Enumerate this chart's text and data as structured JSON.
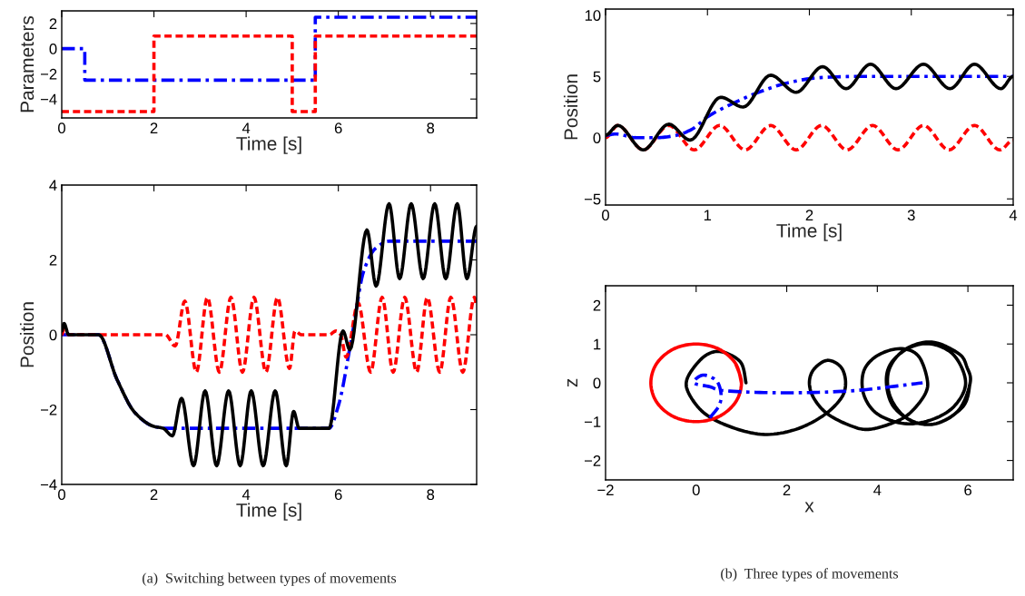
{
  "chart_data": [
    {
      "type": "step",
      "xlabel": "Time [s]",
      "ylabel": "Parameters",
      "xlim": [
        0,
        9
      ],
      "xticks": [
        0,
        2,
        4,
        6,
        8
      ],
      "ylim": [
        -5.5,
        3
      ],
      "yticks": [
        -4,
        -2,
        0,
        2
      ],
      "grid": false,
      "series": [
        {
          "color": "#0000ff",
          "line_style": "dashdot",
          "x": [
            0,
            0.5,
            5.5,
            9
          ],
          "values": [
            0,
            -2.5,
            2.5,
            2.5
          ]
        },
        {
          "color": "#ff0000",
          "line_style": "dashed",
          "x": [
            0,
            2,
            5,
            5.5,
            9
          ],
          "values": [
            -5,
            1,
            -5,
            1,
            1
          ]
        }
      ]
    },
    {
      "type": "line",
      "xlabel": "Time [s]",
      "ylabel": "Position",
      "xlim": [
        0,
        9
      ],
      "xticks": [
        0,
        2,
        4,
        6,
        8
      ],
      "ylim": [
        -4,
        4
      ],
      "yticks": [
        -4,
        -2,
        0,
        2,
        4
      ],
      "grid": false,
      "annotations": [
        "(a)  Switching between types of movements"
      ],
      "series": [
        {
          "color": "#0000ff",
          "line_style": "dashdot",
          "x": [
            0,
            0.8,
            1.2,
            1.6,
            2.0,
            2.3,
            5.8,
            6.0,
            6.3,
            6.55,
            6.8,
            7.1,
            9
          ],
          "values": [
            0,
            0,
            -1.2,
            -2.1,
            -2.45,
            -2.5,
            -2.5,
            -1.9,
            0,
            1.7,
            2.3,
            2.5,
            2.5
          ]
        },
        {
          "color": "#ff0000",
          "line_style": "dashed",
          "x": [
            0,
            0.05,
            0.15,
            2.25,
            2.46,
            2.67,
            2.92,
            3.16,
            3.42,
            3.67,
            3.92,
            4.17,
            4.43,
            4.68,
            4.94,
            5.06,
            5.2,
            5.8,
            5.95,
            6.05,
            6.17,
            6.43,
            6.7,
            6.95,
            7.19,
            7.44,
            7.7,
            7.93,
            8.2,
            8.44,
            8.7,
            8.95,
            9
          ],
          "values": [
            0,
            0.15,
            0,
            0,
            -0.3,
            0.9,
            -1,
            1,
            -1,
            1,
            -1,
            1,
            -1,
            1,
            -0.9,
            0.1,
            0,
            0,
            0.1,
            0,
            -0.6,
            0.85,
            -1,
            1,
            -1,
            1,
            -1,
            1,
            -1,
            1,
            -1,
            1,
            0.8
          ]
        },
        {
          "color": "#000000",
          "line_style": "solid",
          "x": [
            0,
            0.05,
            0.15,
            0.8,
            1.2,
            1.6,
            2.0,
            2.2,
            2.4,
            2.6,
            2.86,
            3.11,
            3.36,
            3.62,
            3.87,
            4.11,
            4.37,
            4.63,
            4.87,
            5.03,
            5.15,
            5.8,
            6.1,
            6.25,
            6.62,
            6.82,
            7.1,
            7.33,
            7.58,
            7.84,
            8.09,
            8.33,
            8.58,
            8.79,
            9
          ],
          "values": [
            0.1,
            0.3,
            0,
            0,
            -1.2,
            -2.1,
            -2.45,
            -2.5,
            -2.7,
            -1.7,
            -3.5,
            -1.5,
            -3.5,
            -1.5,
            -3.5,
            -1.5,
            -3.5,
            -1.5,
            -3.5,
            -2.05,
            -2.5,
            -2.5,
            0.1,
            -0.4,
            2.8,
            1.3,
            3.5,
            1.5,
            3.5,
            1.5,
            3.5,
            1.5,
            3.5,
            1.5,
            2.9
          ]
        }
      ]
    },
    {
      "type": "line",
      "xlabel": "Time [s]",
      "ylabel": "Position",
      "xlim": [
        0,
        4
      ],
      "xticks": [
        0,
        1,
        2,
        3,
        4
      ],
      "ylim": [
        -5.5,
        10.5
      ],
      "yticks": [
        -5,
        0,
        5,
        10
      ],
      "grid": false,
      "series": [
        {
          "color": "#ff0000",
          "line_style": "dashed",
          "x": [
            0,
            0.12,
            0.37,
            0.62,
            0.87,
            1.12,
            1.37,
            1.62,
            1.87,
            2.12,
            2.37,
            2.62,
            2.87,
            3.12,
            3.37,
            3.62,
            3.87,
            4.0
          ],
          "values": [
            0,
            1,
            -1,
            1,
            -1,
            1,
            -1,
            1,
            -1,
            1,
            -1,
            1,
            -1,
            1,
            -1,
            1,
            -1,
            -0.2
          ]
        },
        {
          "color": "#0000ff",
          "line_style": "dashdot",
          "x": [
            0,
            0.1,
            0.3,
            0.5,
            0.7,
            0.85,
            1.0,
            1.2,
            1.5,
            1.8,
            2.1,
            2.5,
            4.0
          ],
          "values": [
            0.2,
            0.3,
            0,
            0,
            0.2,
            0.7,
            1.7,
            2.6,
            3.7,
            4.5,
            4.9,
            5.0,
            5.0
          ]
        },
        {
          "color": "#000000",
          "line_style": "solid",
          "x": [
            0,
            0.12,
            0.37,
            0.62,
            0.83,
            1.13,
            1.35,
            1.62,
            1.87,
            2.13,
            2.36,
            2.6,
            2.85,
            3.12,
            3.38,
            3.62,
            3.88,
            4.0
          ],
          "values": [
            0.2,
            1.0,
            -1.0,
            1.1,
            -0.2,
            3.3,
            2.5,
            5.1,
            3.7,
            5.8,
            4.0,
            6.0,
            4.0,
            6.0,
            4.0,
            6.0,
            4.0,
            5.0
          ]
        }
      ]
    },
    {
      "type": "line",
      "xlabel": "x",
      "ylabel": "z",
      "xlim": [
        -2,
        7
      ],
      "xticks": [
        -2,
        0,
        2,
        4,
        6
      ],
      "ylim": [
        -2.5,
        2.5
      ],
      "yticks": [
        -2,
        -1,
        0,
        1,
        2
      ],
      "grid": false,
      "annotations": [
        "(b)  Three types of movements"
      ],
      "series": [
        {
          "color": "#000000",
          "line_style": "solid",
          "x": [
            1.1,
            1.0,
            0.7,
            0.4,
            0.1,
            -0.2,
            -0.15,
            0.2,
            0.8,
            1.5,
            2.2,
            2.8,
            3.2,
            3.3,
            3.2,
            2.9,
            2.6,
            2.5,
            2.6,
            2.9,
            3.4,
            3.8,
            4.3,
            4.7,
            5.05,
            5.1,
            4.9,
            4.5,
            4.0,
            3.7,
            3.7,
            4.0,
            4.6,
            5.2,
            5.7,
            5.95,
            5.7,
            5.2,
            4.7,
            4.3,
            4.2,
            4.35,
            4.8,
            5.3,
            5.8,
            6.05,
            5.98,
            5.8,
            5.2,
            4.6,
            4.25,
            4.3,
            4.7,
            5.3,
            5.9,
            6.05
          ],
          "values": [
            0.0,
            0.5,
            0.75,
            0.8,
            0.6,
            0.1,
            -0.3,
            -0.8,
            -1.15,
            -1.33,
            -1.2,
            -0.85,
            -0.4,
            0.0,
            0.4,
            0.58,
            0.35,
            0.0,
            -0.4,
            -0.8,
            -1.1,
            -1.2,
            -1.05,
            -0.8,
            -0.3,
            0.1,
            0.7,
            0.88,
            0.7,
            0.3,
            -0.3,
            -0.8,
            -1.05,
            -0.95,
            -0.6,
            0.0,
            0.7,
            1.0,
            0.9,
            0.5,
            0.0,
            -0.6,
            -1.0,
            -1.05,
            -0.7,
            0.0,
            0.4,
            0.75,
            1.05,
            0.85,
            0.3,
            -0.4,
            -0.95,
            -1.05,
            -0.6,
            0.0
          ]
        },
        {
          "color": "#ff0000",
          "line_style": "solid",
          "x": [
            1,
            0.87,
            0.5,
            0,
            -0.5,
            -0.87,
            -1,
            -0.87,
            -0.5,
            0,
            0.5,
            0.87,
            1,
            0.87
          ],
          "values": [
            0,
            0.5,
            0.87,
            1,
            0.87,
            0.5,
            0,
            -0.5,
            -0.87,
            -1,
            -0.87,
            -0.5,
            0,
            0.5
          ]
        },
        {
          "color": "#0000ff",
          "line_style": "dashdot",
          "x": [
            0.3,
            0.5,
            0.55,
            0.45,
            0.15,
            -0.05,
            0.3,
            0.6,
            1.5,
            2.5,
            3.5,
            4.3,
            5.0
          ],
          "values": [
            -0.9,
            -0.6,
            -0.3,
            0.05,
            0.2,
            0.0,
            -0.1,
            -0.2,
            -0.25,
            -0.25,
            -0.2,
            -0.1,
            0.0
          ]
        }
      ]
    }
  ]
}
